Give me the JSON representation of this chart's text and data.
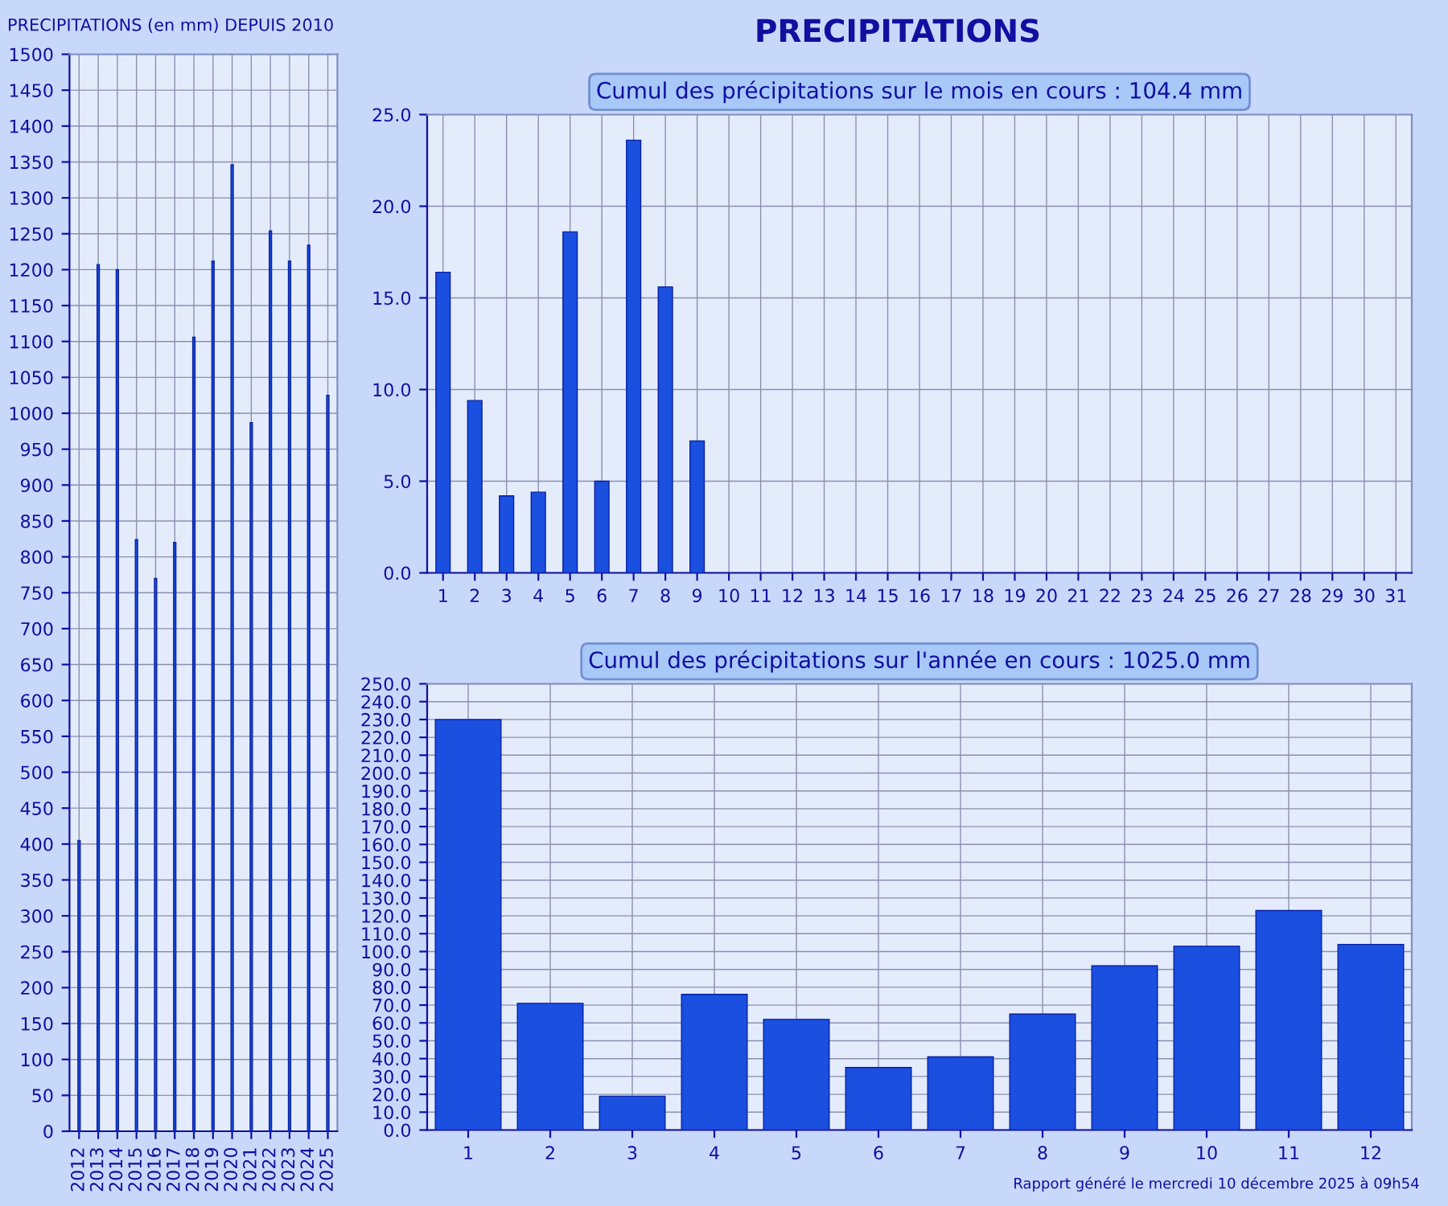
{
  "chart_data": [
    {
      "type": "bar",
      "title": "PRECIPITATIONS (en mm) DEPUIS 2010",
      "categories": [
        "2012",
        "2013",
        "2014",
        "2015",
        "2016",
        "2017",
        "2018",
        "2019",
        "2020",
        "2021",
        "2022",
        "2023",
        "2024",
        "2025"
      ],
      "values": [
        405,
        1207,
        1200,
        824,
        770,
        820,
        1106,
        1212,
        1346,
        987,
        1254,
        1212,
        1234,
        1025
      ],
      "color": "#1a4fe0",
      "ylim": [
        0,
        1500
      ],
      "yticks": [
        0,
        50,
        100,
        150,
        200,
        250,
        300,
        350,
        400,
        450,
        500,
        550,
        600,
        650,
        700,
        750,
        800,
        850,
        900,
        950,
        1000,
        1050,
        1100,
        1150,
        1200,
        1250,
        1300,
        1350,
        1400,
        1450,
        1500
      ],
      "grid": true
    },
    {
      "type": "bar",
      "title": "PRECIPITATIONS",
      "subtitle": "Cumul des précipitations sur le mois en cours : 104.4 mm",
      "categories": [
        "1",
        "2",
        "3",
        "4",
        "5",
        "6",
        "7",
        "8",
        "9",
        "10",
        "11",
        "12",
        "13",
        "14",
        "15",
        "16",
        "17",
        "18",
        "19",
        "20",
        "21",
        "22",
        "23",
        "24",
        "25",
        "26",
        "27",
        "28",
        "29",
        "30",
        "31"
      ],
      "values": [
        16.4,
        9.4,
        4.2,
        4.4,
        18.6,
        5.0,
        23.6,
        15.6,
        7.2,
        null,
        null,
        null,
        null,
        null,
        null,
        null,
        null,
        null,
        null,
        null,
        null,
        null,
        null,
        null,
        null,
        null,
        null,
        null,
        null,
        null,
        null
      ],
      "color": "#1a4fe0",
      "ylim": [
        0,
        25
      ],
      "yticks": [
        {
          "value": 0,
          "label": "0.0"
        },
        {
          "value": 5,
          "label": "5.0"
        },
        {
          "value": 10,
          "label": "10.0"
        },
        {
          "value": 15,
          "label": "15.0"
        },
        {
          "value": 20,
          "label": "20.0"
        },
        {
          "value": 25,
          "label": "25.0"
        }
      ],
      "grid": true
    },
    {
      "type": "bar",
      "subtitle": "Cumul des précipitations sur l'année en cours : 1025.0 mm",
      "categories": [
        "1",
        "2",
        "3",
        "4",
        "5",
        "6",
        "7",
        "8",
        "9",
        "10",
        "11",
        "12"
      ],
      "values": [
        230,
        71,
        19,
        76,
        62,
        35,
        41,
        65,
        92,
        103,
        123,
        104
      ],
      "color": "#1a4fe0",
      "ylim": [
        0,
        250
      ],
      "yticks": [
        {
          "value": 0,
          "label": "0.0"
        },
        {
          "value": 10,
          "label": "10.0"
        },
        {
          "value": 20,
          "label": "20.0"
        },
        {
          "value": 30,
          "label": "30.0"
        },
        {
          "value": 40,
          "label": "40.0"
        },
        {
          "value": 50,
          "label": "50.0"
        },
        {
          "value": 60,
          "label": "60.0"
        },
        {
          "value": 70,
          "label": "70.0"
        },
        {
          "value": 80,
          "label": "80.0"
        },
        {
          "value": 90,
          "label": "90.0"
        },
        {
          "value": 100,
          "label": "100.0"
        },
        {
          "value": 110,
          "label": "110.0"
        },
        {
          "value": 120,
          "label": "120.0"
        },
        {
          "value": 130,
          "label": "130.0"
        },
        {
          "value": 140,
          "label": "140.0"
        },
        {
          "value": 150,
          "label": "150.0"
        },
        {
          "value": 160,
          "label": "160.0"
        },
        {
          "value": 170,
          "label": "170.0"
        },
        {
          "value": 180,
          "label": "180.0"
        },
        {
          "value": 190,
          "label": "190.0"
        },
        {
          "value": 200,
          "label": "200.0"
        },
        {
          "value": 210,
          "label": "210.0"
        },
        {
          "value": 220,
          "label": "220.0"
        },
        {
          "value": 230,
          "label": "230.0"
        },
        {
          "value": 240,
          "label": "240.0"
        },
        {
          "value": 250,
          "label": "250.0"
        }
      ],
      "grid": true,
      "annotations": [
        "Rapport généré le mercredi 10 décembre 2025 à 09h54"
      ]
    }
  ]
}
